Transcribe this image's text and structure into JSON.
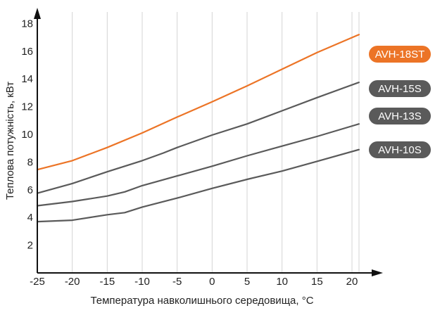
{
  "chart_data": {
    "type": "line",
    "xlabel": "Температура навколишнього середовища, °C",
    "ylabel": "Теплова потужність, кВт",
    "xlim": [
      -25,
      21
    ],
    "ylim": [
      0,
      18.5
    ],
    "xticks": [
      -25,
      -20,
      -15,
      -10,
      -5,
      0,
      5,
      10,
      15,
      20
    ],
    "yticks": [
      2,
      4,
      6,
      8,
      10,
      12,
      14,
      16,
      18
    ],
    "grid": "vertical",
    "legend_position": "right",
    "series": [
      {
        "name": "AVH-18ST",
        "color": "#ec7426",
        "x": [
          -25,
          -20,
          -15,
          -10,
          -5,
          0,
          5,
          10,
          15,
          21
        ],
        "y": [
          7.45,
          8.1,
          9.05,
          10.1,
          11.25,
          12.35,
          13.5,
          14.7,
          15.9,
          17.2
        ]
      },
      {
        "name": "AVH-15S",
        "color": "#5a5a5a",
        "x": [
          -25,
          -20,
          -15,
          -10,
          -7,
          -5,
          0,
          5,
          10,
          15,
          21
        ],
        "y": [
          5.75,
          6.45,
          7.3,
          8.1,
          8.65,
          9.05,
          9.95,
          10.75,
          11.7,
          12.65,
          13.75
        ]
      },
      {
        "name": "AVH-13S",
        "color": "#5a5a5a",
        "x": [
          -25,
          -20,
          -15,
          -12.5,
          -10,
          -5,
          0,
          5,
          10,
          15,
          21
        ],
        "y": [
          4.85,
          5.15,
          5.55,
          5.85,
          6.3,
          7.0,
          7.7,
          8.45,
          9.15,
          9.85,
          10.75
        ]
      },
      {
        "name": "AVH-10S",
        "color": "#5a5a5a",
        "x": [
          -25,
          -20,
          -15,
          -12.5,
          -10,
          -5,
          0,
          5,
          10,
          15,
          21
        ],
        "y": [
          3.7,
          3.8,
          4.2,
          4.35,
          4.75,
          5.4,
          6.1,
          6.75,
          7.35,
          8.05,
          8.9
        ]
      }
    ]
  }
}
